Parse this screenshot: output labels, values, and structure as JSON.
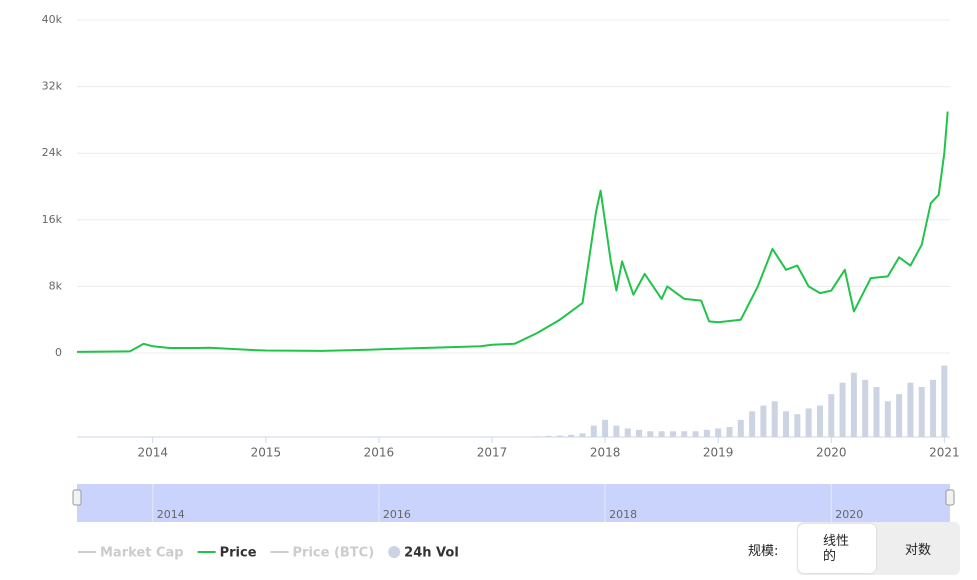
{
  "chart_data": {
    "type": "line",
    "xlim": [
      2013.33,
      2021.05
    ],
    "xticks": [
      2014,
      2015,
      2016,
      2017,
      2018,
      2019,
      2020,
      2021
    ],
    "ylim": [
      0,
      40000
    ],
    "yticks": [
      0,
      {
        "value": 8000,
        "label": "8k"
      },
      {
        "value": 16000,
        "label": "16k"
      },
      {
        "value": 24000,
        "label": "24k"
      },
      {
        "value": 32000,
        "label": "32k"
      },
      {
        "value": 40000,
        "label": "40k"
      }
    ],
    "grid": true,
    "series": [
      {
        "name": "Price",
        "color": "#22c34a",
        "x": [
          2013.33,
          2013.8,
          2013.92,
          2014.0,
          2014.15,
          2014.4,
          2014.5,
          2014.9,
          2015.0,
          2015.5,
          2015.9,
          2016.5,
          2016.9,
          2017.0,
          2017.2,
          2017.4,
          2017.6,
          2017.8,
          2017.92,
          2017.96,
          2018.05,
          2018.1,
          2018.15,
          2018.25,
          2018.35,
          2018.5,
          2018.55,
          2018.7,
          2018.85,
          2018.92,
          2019.0,
          2019.2,
          2019.35,
          2019.48,
          2019.6,
          2019.7,
          2019.8,
          2019.9,
          2020.0,
          2020.12,
          2020.2,
          2020.35,
          2020.5,
          2020.6,
          2020.7,
          2020.8,
          2020.88,
          2020.95,
          2021.0,
          2021.03
        ],
        "values": [
          130,
          200,
          1100,
          800,
          600,
          600,
          630,
          350,
          300,
          250,
          400,
          650,
          800,
          1000,
          1100,
          2400,
          4000,
          6000,
          17000,
          19500,
          11000,
          7500,
          11000,
          7000,
          9500,
          6500,
          8000,
          6500,
          6300,
          3800,
          3700,
          4000,
          8000,
          12500,
          10000,
          10500,
          8000,
          7200,
          7500,
          10000,
          5000,
          9000,
          9200,
          11500,
          10500,
          13000,
          18000,
          19000,
          24000,
          29000
        ]
      },
      {
        "name": "24h Vol",
        "color": "#ccd3e3",
        "x": [
          2017.4,
          2017.5,
          2017.6,
          2017.7,
          2017.8,
          2017.9,
          2018.0,
          2018.1,
          2018.2,
          2018.3,
          2018.4,
          2018.5,
          2018.6,
          2018.7,
          2018.8,
          2018.9,
          2019.0,
          2019.1,
          2019.2,
          2019.3,
          2019.4,
          2019.5,
          2019.6,
          2019.7,
          2019.8,
          2019.9,
          2020.0,
          2020.1,
          2020.2,
          2020.3,
          2020.4,
          2020.5,
          2020.6,
          2020.7,
          2020.8,
          2020.9,
          2021.0
        ],
        "values": [
          0.5,
          0.8,
          1,
          1.5,
          2.5,
          8,
          12,
          8,
          6,
          5,
          4,
          4,
          4,
          4,
          4,
          5,
          6,
          7,
          12,
          18,
          22,
          25,
          18,
          16,
          20,
          22,
          30,
          38,
          45,
          40,
          35,
          25,
          30,
          38,
          35,
          40,
          50
        ]
      }
    ],
    "hidden_series": [
      {
        "name": "Market Cap",
        "color": "#cccccc"
      },
      {
        "name": "Price (BTC)",
        "color": "#cccccc"
      }
    ],
    "navigator_xticks": [
      2014,
      2016,
      2018,
      2020
    ],
    "navigator_color": "#cad3fb",
    "scale_label": "规模:",
    "scale_options": [
      "线性的",
      "对数"
    ]
  }
}
